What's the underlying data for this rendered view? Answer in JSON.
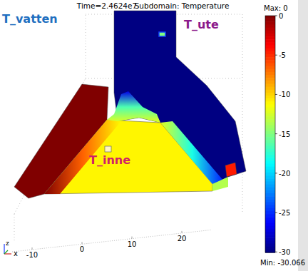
{
  "chart_data": {
    "type": "surface",
    "title": "Time=2.4624e7",
    "subtitle": "Subdomain: Temperature",
    "xticks": [
      -10,
      0,
      10,
      20
    ],
    "xlim": [
      -14,
      26
    ],
    "axis_labels": {
      "x": "x",
      "z": "z"
    },
    "regions": [
      {
        "name": "T_vatten",
        "value": 0
      },
      {
        "name": "T_ute",
        "value": -30
      },
      {
        "name": "T_inne",
        "value": -11
      }
    ],
    "colorbar": {
      "range": [
        -30.066,
        0
      ],
      "ticks": [
        0,
        -5,
        -10,
        -15,
        -20,
        -25,
        -30
      ],
      "max_label": "Max:",
      "min_label": "Min:"
    }
  }
}
